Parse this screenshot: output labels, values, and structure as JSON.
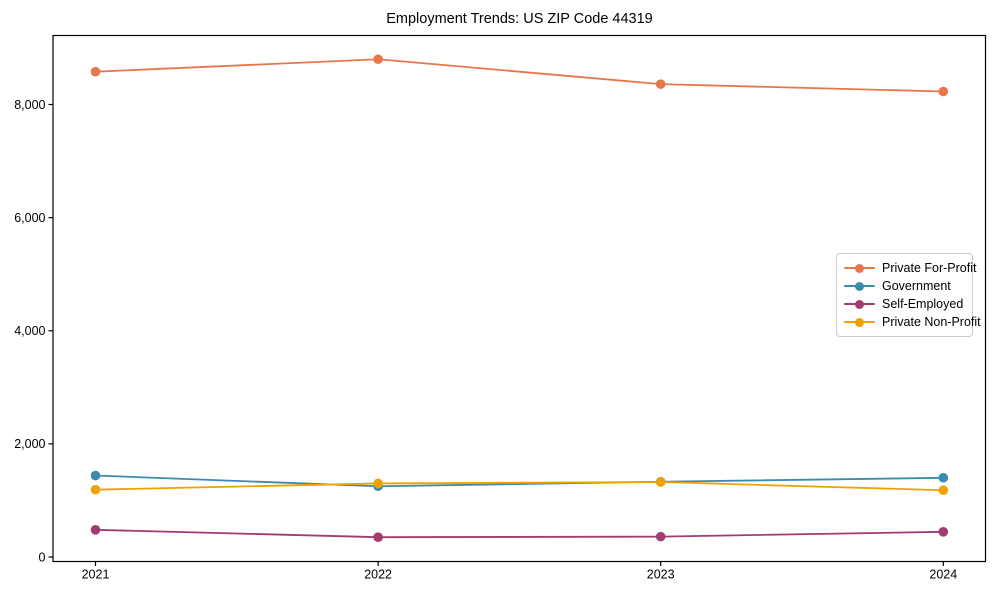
{
  "chart_data": {
    "type": "line",
    "title": "Employment Trends: US ZIP Code 44319",
    "categories": [
      "2021",
      "2022",
      "2023",
      "2024"
    ],
    "series": [
      {
        "name": "Private For-Profit",
        "color": "#E8764B",
        "values": [
          8580,
          8800,
          8360,
          8230
        ]
      },
      {
        "name": "Government",
        "color": "#3A8BAC",
        "values": [
          1440,
          1250,
          1330,
          1400
        ]
      },
      {
        "name": "Self-Employed",
        "color": "#A23B72",
        "values": [
          480,
          350,
          360,
          445
        ]
      },
      {
        "name": "Private Non-Profit",
        "color": "#F0A202",
        "values": [
          1190,
          1300,
          1325,
          1180
        ]
      }
    ],
    "xlabel": "",
    "ylabel": "",
    "yticks": [
      0,
      2000,
      4000,
      6000,
      8000
    ],
    "ytick_labels": [
      "0",
      "2,000",
      "4,000",
      "6,000",
      "8,000"
    ],
    "ylim": [
      -80,
      9220
    ],
    "grid": false,
    "legend_position": "center right",
    "marker": "circle",
    "axis_color": "#000000"
  }
}
